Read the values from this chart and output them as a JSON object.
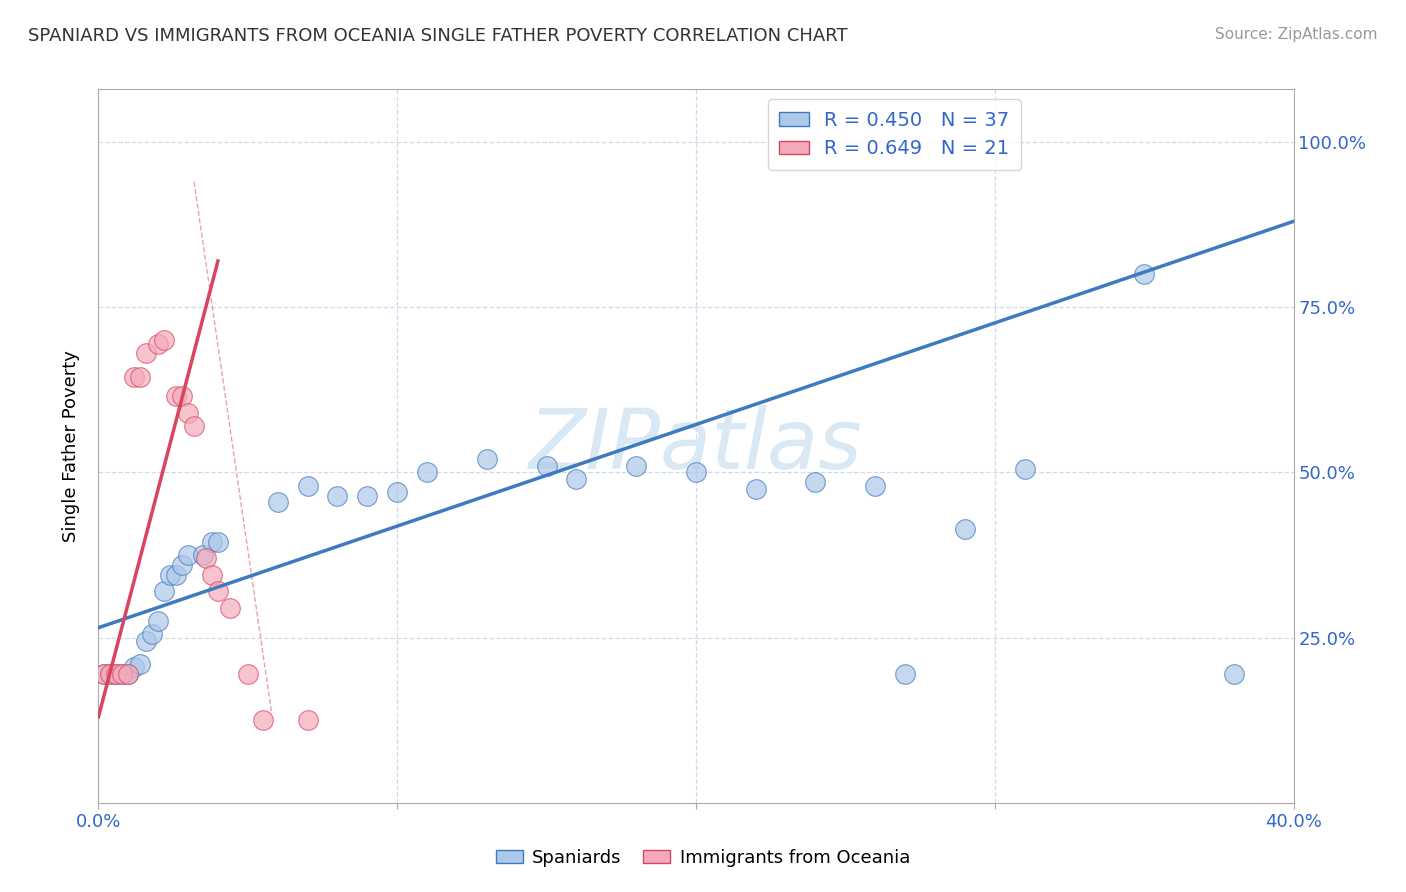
{
  "title": "SPANIARD VS IMMIGRANTS FROM OCEANIA SINGLE FATHER POVERTY CORRELATION CHART",
  "source": "Source: ZipAtlas.com",
  "ylabel": "Single Father Poverty",
  "xaxis_range": [
    0.0,
    0.4
  ],
  "yaxis_range": [
    0.0,
    1.08
  ],
  "watermark": "ZIPatlas",
  "legend_r1": "R = 0.450",
  "legend_n1": "N = 37",
  "legend_r2": "R = 0.649",
  "legend_n2": "N = 21",
  "blue_color": "#adc8e8",
  "pink_color": "#f4aabb",
  "blue_line_color": "#3d7abf",
  "pink_line_color": "#d9455f",
  "scatter_blue": [
    [
      0.002,
      0.195
    ],
    [
      0.004,
      0.195
    ],
    [
      0.006,
      0.195
    ],
    [
      0.008,
      0.195
    ],
    [
      0.01,
      0.195
    ],
    [
      0.012,
      0.205
    ],
    [
      0.014,
      0.21
    ],
    [
      0.016,
      0.245
    ],
    [
      0.018,
      0.255
    ],
    [
      0.02,
      0.275
    ],
    [
      0.022,
      0.32
    ],
    [
      0.024,
      0.345
    ],
    [
      0.026,
      0.345
    ],
    [
      0.028,
      0.36
    ],
    [
      0.03,
      0.375
    ],
    [
      0.035,
      0.375
    ],
    [
      0.038,
      0.395
    ],
    [
      0.04,
      0.395
    ],
    [
      0.06,
      0.455
    ],
    [
      0.07,
      0.48
    ],
    [
      0.08,
      0.465
    ],
    [
      0.09,
      0.465
    ],
    [
      0.1,
      0.47
    ],
    [
      0.11,
      0.5
    ],
    [
      0.13,
      0.52
    ],
    [
      0.15,
      0.51
    ],
    [
      0.16,
      0.49
    ],
    [
      0.18,
      0.51
    ],
    [
      0.2,
      0.5
    ],
    [
      0.22,
      0.475
    ],
    [
      0.24,
      0.485
    ],
    [
      0.26,
      0.48
    ],
    [
      0.27,
      0.195
    ],
    [
      0.29,
      0.415
    ],
    [
      0.31,
      0.505
    ],
    [
      0.35,
      0.8
    ],
    [
      0.38,
      0.195
    ]
  ],
  "scatter_pink": [
    [
      0.002,
      0.195
    ],
    [
      0.004,
      0.195
    ],
    [
      0.006,
      0.195
    ],
    [
      0.008,
      0.195
    ],
    [
      0.01,
      0.195
    ],
    [
      0.012,
      0.645
    ],
    [
      0.014,
      0.645
    ],
    [
      0.016,
      0.68
    ],
    [
      0.02,
      0.695
    ],
    [
      0.022,
      0.7
    ],
    [
      0.026,
      0.615
    ],
    [
      0.028,
      0.615
    ],
    [
      0.03,
      0.59
    ],
    [
      0.032,
      0.57
    ],
    [
      0.036,
      0.37
    ],
    [
      0.038,
      0.345
    ],
    [
      0.04,
      0.32
    ],
    [
      0.044,
      0.295
    ],
    [
      0.05,
      0.195
    ],
    [
      0.055,
      0.125
    ],
    [
      0.07,
      0.125
    ]
  ],
  "blue_line_x": [
    0.0,
    0.4
  ],
  "blue_line_y": [
    0.265,
    0.88
  ],
  "pink_line_x": [
    0.0,
    0.04
  ],
  "pink_line_y": [
    0.13,
    0.82
  ],
  "diag_line_x": [
    0.032,
    0.058
  ],
  "diag_line_y": [
    0.94,
    0.135
  ]
}
